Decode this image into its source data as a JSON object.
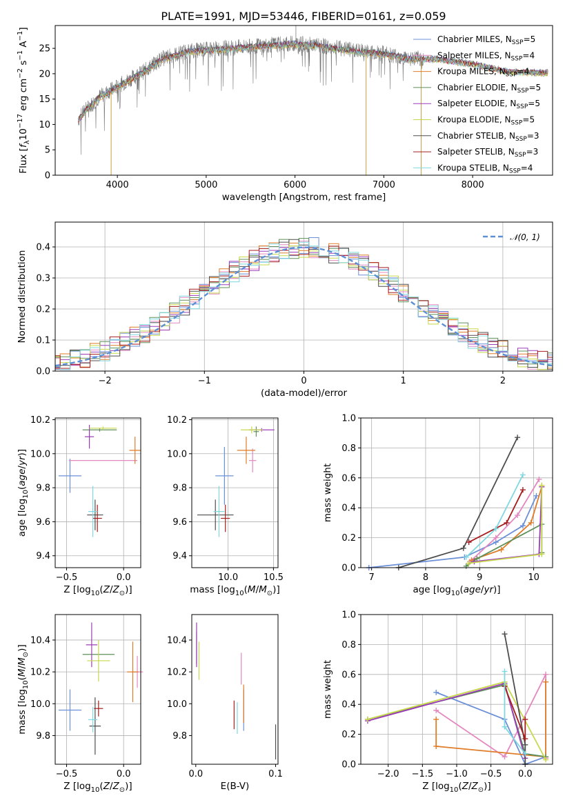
{
  "title": "PLATE=1991, MJD=53446, FIBERID=0161, z=0.059",
  "legend_entries": [
    {
      "label": "Chabrier MILES, N",
      "sub": "SSP",
      "tail": "=5",
      "color": "#6a8fd8"
    },
    {
      "label": "Salpeter MILES, N",
      "sub": "SSP",
      "tail": "=4",
      "color": "#e387bf"
    },
    {
      "label": "Kroupa MILES, N",
      "sub": "SSP",
      "tail": "=4",
      "color": "#e07b27"
    },
    {
      "label": "Chabrier ELODIE, N",
      "sub": "SSP",
      "tail": "=5",
      "color": "#5f8f5a"
    },
    {
      "label": "Salpeter ELODIE, N",
      "sub": "SSP",
      "tail": "=5",
      "color": "#9b3bb8"
    },
    {
      "label": "Kroupa ELODIE, N",
      "sub": "SSP",
      "tail": "=5",
      "color": "#c7d84b"
    },
    {
      "label": "Chabrier STELIB, N",
      "sub": "SSP",
      "tail": "=3",
      "color": "#4d4d4d"
    },
    {
      "label": "Salpeter STELIB, N",
      "sub": "SSP",
      "tail": "=3",
      "color": "#a51d1d"
    },
    {
      "label": "Kroupa STELIB, N",
      "sub": "SSP",
      "tail": "=4",
      "color": "#7fd8df"
    }
  ],
  "hist_legend": "𝒩(0, 1)",
  "chart_data": [
    {
      "id": "spectrum",
      "type": "line",
      "xlabel": "wavelength [Angstrom, rest frame]",
      "ylabel": "Flux [f_λ 10^-17 erg cm^-2 s^-1 A^-1]",
      "xlim": [
        3300,
        8900
      ],
      "ylim": [
        0,
        29.5
      ],
      "xticks": [
        4000,
        5000,
        6000,
        7000,
        8000
      ],
      "yticks": [
        0,
        5,
        10,
        15,
        20,
        25
      ],
      "continuum": [
        [
          3560,
          11
        ],
        [
          3650,
          13
        ],
        [
          3800,
          15.5
        ],
        [
          3950,
          17
        ],
        [
          4100,
          18.5
        ],
        [
          4300,
          20.5
        ],
        [
          4500,
          23
        ],
        [
          4800,
          24.5
        ],
        [
          5200,
          25
        ],
        [
          5600,
          25.5
        ],
        [
          6000,
          26
        ],
        [
          6300,
          25.5
        ],
        [
          6700,
          24.5
        ],
        [
          7000,
          24
        ],
        [
          7300,
          23
        ],
        [
          7600,
          23
        ],
        [
          7800,
          22.5
        ],
        [
          8000,
          22
        ],
        [
          8400,
          20.5
        ],
        [
          8800,
          20.3
        ]
      ],
      "data_end": 7450,
      "spikes": [
        [
          3930,
          0
        ],
        [
          6800,
          0
        ],
        [
          7420,
          0
        ]
      ],
      "grid": false
    },
    {
      "id": "residual_histogram",
      "type": "histogram",
      "xlabel": "(data-model)/error",
      "ylabel": "Normed distribution",
      "xlim": [
        -2.5,
        2.5
      ],
      "ylim": [
        0,
        0.48
      ],
      "xticks": [
        -2,
        -1,
        0,
        1,
        2
      ],
      "yticks": [
        0,
        0.1,
        0.2,
        0.3,
        0.4
      ],
      "bin_width": 0.1,
      "normal_curve": {
        "mu": 0,
        "sigma": 1,
        "color": "#5b8fd6"
      },
      "grid": true
    },
    {
      "id": "age_vs_Z",
      "type": "scatter",
      "xlabel": "Z [log10(Z/Z⊙)]",
      "ylabel": "age [log10(age/yr)]",
      "xlim": [
        -0.6,
        0.15
      ],
      "ylim": [
        9.33,
        10.21
      ],
      "xticks": [
        -0.5,
        0.0
      ],
      "yticks": [
        9.4,
        9.6,
        9.8,
        10.0,
        10.2
      ],
      "points": [
        {
          "x": -0.47,
          "xerr": 0.1,
          "y": 9.87,
          "yerr": 0.1,
          "color": "#6a8fd8"
        },
        {
          "x": -0.18,
          "xerr": 0.3,
          "y": 9.96,
          "yerr": 0.0,
          "color": "#e387bf"
        },
        {
          "x": 0.1,
          "xerr": 0.05,
          "y": 10.02,
          "yerr": 0.08,
          "color": "#e07b27"
        },
        {
          "x": -0.21,
          "xerr": 0.15,
          "y": 10.14,
          "yerr": 0.01,
          "color": "#5f8f5a"
        },
        {
          "x": -0.3,
          "xerr": 0.04,
          "y": 10.1,
          "yerr": 0.07,
          "color": "#9b3bb8"
        },
        {
          "x": -0.18,
          "xerr": 0.12,
          "y": 10.15,
          "yerr": 0.01,
          "color": "#c7d84b"
        },
        {
          "x": -0.25,
          "xerr": 0.07,
          "y": 9.64,
          "yerr": 0.09,
          "color": "#4d4d4d"
        },
        {
          "x": -0.23,
          "xerr": 0.04,
          "y": 9.62,
          "yerr": 0.08,
          "color": "#a51d1d"
        },
        {
          "x": -0.27,
          "xerr": 0.04,
          "y": 9.66,
          "yerr": 0.15,
          "color": "#7fd8df"
        }
      ],
      "grid": true
    },
    {
      "id": "age_vs_mass",
      "type": "scatter",
      "xlabel": "mass [log10(M/M⊙)]",
      "ylabel": "",
      "xlim": [
        9.6,
        10.55
      ],
      "ylim": [
        9.33,
        10.21
      ],
      "xticks": [
        10.0,
        10.5
      ],
      "yticks": [
        9.4,
        9.6,
        9.8,
        10.0,
        10.2
      ],
      "points": [
        {
          "x": 9.96,
          "xerr": 0.1,
          "y": 9.87,
          "yerr": 0.17,
          "color": "#6a8fd8"
        },
        {
          "x": 10.27,
          "xerr": 0.04,
          "y": 9.96,
          "yerr": 0.07,
          "color": "#e387bf"
        },
        {
          "x": 10.2,
          "xerr": 0.1,
          "y": 10.02,
          "yerr": 0.08,
          "color": "#e07b27"
        },
        {
          "x": 10.31,
          "xerr": 0.03,
          "y": 10.13,
          "yerr": 0.03,
          "color": "#5f8f5a"
        },
        {
          "x": 10.37,
          "xerr": 0.14,
          "y": 10.14,
          "yerr": 0.01,
          "color": "#9b3bb8"
        },
        {
          "x": 10.26,
          "xerr": 0.12,
          "y": 10.14,
          "yerr": 0.02,
          "color": "#c7d84b"
        },
        {
          "x": 9.86,
          "xerr": 0.2,
          "y": 9.64,
          "yerr": 0.09,
          "color": "#4d4d4d"
        },
        {
          "x": 9.97,
          "xerr": 0.05,
          "y": 9.62,
          "yerr": 0.08,
          "color": "#a51d1d"
        },
        {
          "x": 9.9,
          "xerr": 0.06,
          "y": 9.66,
          "yerr": 0.15,
          "color": "#7fd8df"
        }
      ],
      "grid": true
    },
    {
      "id": "weight_vs_age",
      "type": "line",
      "xlabel": "age [log10(age/yr)]",
      "ylabel": "mass weight",
      "xlim": [
        6.8,
        10.35
      ],
      "ylim": [
        0,
        1.0
      ],
      "xticks": [
        7,
        8,
        9,
        10
      ],
      "yticks": [
        0.0,
        0.2,
        0.4,
        0.6,
        0.8,
        1.0
      ],
      "series": [
        {
          "color": "#6a8fd8",
          "points": [
            [
              6.95,
              0.0
            ],
            [
              8.72,
              0.07
            ],
            [
              9.3,
              0.17
            ],
            [
              9.8,
              0.28
            ],
            [
              10.05,
              0.48
            ]
          ]
        },
        {
          "color": "#e387bf",
          "points": [
            [
              8.82,
              0.04
            ],
            [
              9.3,
              0.2
            ],
            [
              9.7,
              0.35
            ],
            [
              10.1,
              0.59
            ]
          ]
        },
        {
          "color": "#e07b27",
          "points": [
            [
              8.85,
              0.05
            ],
            [
              9.4,
              0.12
            ],
            [
              9.95,
              0.3
            ],
            [
              10.15,
              0.54
            ]
          ]
        },
        {
          "color": "#5f8f5a",
          "points": [
            [
              8.75,
              0.01
            ],
            [
              8.95,
              0.06
            ],
            [
              10.15,
              0.29
            ],
            [
              10.15,
              0.1
            ]
          ]
        },
        {
          "color": "#9b3bb8",
          "points": [
            [
              8.9,
              0.04
            ],
            [
              10.1,
              0.09
            ],
            [
              10.15,
              0.54
            ]
          ]
        },
        {
          "color": "#c7d84b",
          "points": [
            [
              8.8,
              0.03
            ],
            [
              10.15,
              0.09
            ],
            [
              10.15,
              0.55
            ]
          ]
        },
        {
          "color": "#4d4d4d",
          "points": [
            [
              7.5,
              0.0
            ],
            [
              8.7,
              0.13
            ],
            [
              9.7,
              0.87
            ]
          ]
        },
        {
          "color": "#a51d1d",
          "points": [
            [
              8.8,
              0.17
            ],
            [
              9.5,
              0.3
            ],
            [
              9.8,
              0.52
            ]
          ]
        },
        {
          "color": "#7fd8df",
          "points": [
            [
              8.75,
              0.07
            ],
            [
              9.3,
              0.26
            ],
            [
              9.8,
              0.62
            ]
          ]
        }
      ],
      "grid": true
    },
    {
      "id": "mass_vs_Z",
      "type": "scatter",
      "xlabel": "Z [log10(Z/Z⊙)]",
      "ylabel": "mass [log10(M/M⊙)]",
      "xlim": [
        -0.6,
        0.15
      ],
      "ylim": [
        9.62,
        10.56
      ],
      "xticks": [
        -0.5,
        0.0
      ],
      "yticks": [
        9.8,
        10.0,
        10.2,
        10.4
      ],
      "points": [
        {
          "x": -0.47,
          "xerr": 0.1,
          "y": 9.96,
          "yerr": 0.13,
          "color": "#6a8fd8"
        },
        {
          "x": 0.12,
          "xerr": 0.05,
          "y": 10.2,
          "yerr": 0.1,
          "color": "#e387bf"
        },
        {
          "x": 0.08,
          "xerr": 0.05,
          "y": 10.2,
          "yerr": 0.19,
          "color": "#e07b27"
        },
        {
          "x": -0.22,
          "xerr": 0.14,
          "y": 10.31,
          "yerr": 0.0,
          "color": "#5f8f5a"
        },
        {
          "x": -0.28,
          "xerr": 0.05,
          "y": 10.37,
          "yerr": 0.14,
          "color": "#9b3bb8"
        },
        {
          "x": -0.22,
          "xerr": 0.1,
          "y": 10.27,
          "yerr": 0.13,
          "color": "#c7d84b"
        },
        {
          "x": -0.25,
          "xerr": 0.05,
          "y": 9.86,
          "yerr": 0.18,
          "color": "#4d4d4d"
        },
        {
          "x": -0.22,
          "xerr": 0.04,
          "y": 9.97,
          "yerr": 0.05,
          "color": "#a51d1d"
        },
        {
          "x": -0.27,
          "xerr": 0.04,
          "y": 9.9,
          "yerr": 0.08,
          "color": "#7fd8df"
        }
      ],
      "grid": true
    },
    {
      "id": "mass_vs_EBV",
      "type": "scatter",
      "xlabel": "E(B-V)",
      "ylabel": "",
      "xlim": [
        -0.005,
        0.103
      ],
      "ylim": [
        9.62,
        10.56
      ],
      "xticks": [
        0.0,
        0.1
      ],
      "yticks": [
        9.8,
        10.0,
        10.2,
        10.4
      ],
      "points": [
        {
          "x": 0.06,
          "xerr": 0,
          "y": 9.96,
          "yerr": 0.13,
          "color": "#6a8fd8"
        },
        {
          "x": 0.057,
          "xerr": 0,
          "y": 10.22,
          "yerr": 0.1,
          "color": "#e387bf"
        },
        {
          "x": 0.06,
          "xerr": 0,
          "y": 10.0,
          "yerr": 0.12,
          "color": "#e07b27"
        },
        {
          "x": 0.001,
          "xerr": 0,
          "y": 10.35,
          "yerr": 0.1,
          "color": "#5f8f5a"
        },
        {
          "x": 0.001,
          "xerr": 0,
          "y": 10.37,
          "yerr": 0.14,
          "color": "#9b3bb8"
        },
        {
          "x": 0.004,
          "xerr": 0,
          "y": 10.27,
          "yerr": 0.12,
          "color": "#c7d84b"
        },
        {
          "x": 0.1,
          "xerr": 0,
          "y": 9.76,
          "yerr": 0.11,
          "color": "#4d4d4d"
        },
        {
          "x": 0.048,
          "xerr": 0,
          "y": 9.93,
          "yerr": 0.09,
          "color": "#a51d1d"
        },
        {
          "x": 0.052,
          "xerr": 0,
          "y": 9.91,
          "yerr": 0.1,
          "color": "#7fd8df"
        }
      ],
      "grid": false
    },
    {
      "id": "weight_vs_Z",
      "type": "line",
      "xlabel": "Z [log10(Z/Z⊙)]",
      "ylabel": "mass weight",
      "xlim": [
        -2.4,
        0.4
      ],
      "ylim": [
        0,
        1.0
      ],
      "xticks": [
        -2.0,
        -1.5,
        -1.0,
        -0.5,
        0.0
      ],
      "yticks": [
        0.0,
        0.2,
        0.4,
        0.6,
        0.8,
        1.0
      ],
      "series": [
        {
          "color": "#6a8fd8",
          "points": [
            [
              -1.3,
              0.48
            ],
            [
              -0.3,
              0.3
            ],
            [
              0.0,
              0.0
            ],
            [
              0.3,
              0.05
            ]
          ]
        },
        {
          "color": "#e387bf",
          "points": [
            [
              -1.3,
              0.36
            ],
            [
              -0.3,
              0.05
            ],
            [
              0.3,
              0.6
            ],
            [
              0.3,
              0.04
            ]
          ]
        },
        {
          "color": "#e07b27",
          "points": [
            [
              -1.3,
              0.3
            ],
            [
              -1.3,
              0.12
            ],
            [
              0.3,
              0.05
            ],
            [
              0.3,
              0.55
            ]
          ]
        },
        {
          "color": "#5f8f5a",
          "points": [
            [
              -2.3,
              0.3
            ],
            [
              -0.3,
              0.53
            ],
            [
              0.0,
              0.07
            ],
            [
              0.3,
              0.05
            ]
          ]
        },
        {
          "color": "#9b3bb8",
          "points": [
            [
              -2.3,
              0.29
            ],
            [
              -0.3,
              0.54
            ],
            [
              0.0,
              0.04
            ]
          ]
        },
        {
          "color": "#c7d84b",
          "points": [
            [
              -2.3,
              0.3
            ],
            [
              -0.3,
              0.55
            ],
            [
              0.3,
              0.03
            ]
          ]
        },
        {
          "color": "#4d4d4d",
          "points": [
            [
              -0.3,
              0.87
            ],
            [
              0.0,
              0.13
            ],
            [
              0.0,
              0.0
            ]
          ]
        },
        {
          "color": "#a51d1d",
          "points": [
            [
              -0.3,
              0.52
            ],
            [
              0.0,
              0.17
            ],
            [
              0.0,
              0.3
            ]
          ]
        },
        {
          "color": "#7fd8df",
          "points": [
            [
              -0.3,
              0.62
            ],
            [
              -0.3,
              0.25
            ],
            [
              0.0,
              0.07
            ]
          ]
        }
      ],
      "grid": true
    }
  ]
}
